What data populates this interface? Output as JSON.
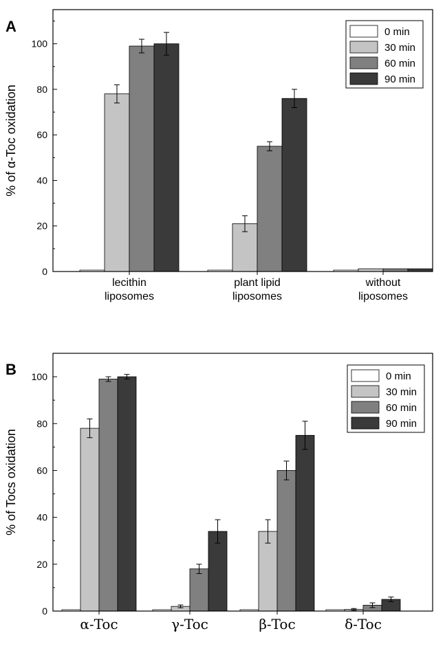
{
  "chart_data": [
    {
      "type": "bar",
      "panel_letter": "A",
      "ylabel": "% of α-Toc oxidation",
      "xlabel": "",
      "ylim": [
        0,
        115
      ],
      "yticks": [
        0,
        20,
        40,
        60,
        80,
        100
      ],
      "categories": [
        [
          "lecithin",
          "liposomes"
        ],
        [
          "plant lipid",
          "liposomes"
        ],
        [
          "without",
          "liposomes"
        ]
      ],
      "series": [
        {
          "name": "0 min",
          "color": "#ffffff",
          "values": [
            0,
            0,
            0
          ],
          "errors": [
            0,
            0,
            0
          ]
        },
        {
          "name": "30 min",
          "color": "#c4c4c4",
          "values": [
            78,
            21,
            1.2
          ],
          "errors": [
            4,
            3.5,
            0
          ]
        },
        {
          "name": "60 min",
          "color": "#808080",
          "values": [
            99,
            55,
            1.2
          ],
          "errors": [
            3,
            2,
            0
          ]
        },
        {
          "name": "90 min",
          "color": "#3a3a3a",
          "values": [
            100,
            76,
            1.2
          ],
          "errors": [
            5,
            4,
            0
          ]
        }
      ],
      "legend": "top-right",
      "grid": false
    },
    {
      "type": "bar",
      "panel_letter": "B",
      "ylabel": "% of Tocs oxidation",
      "xlabel": "",
      "ylim": [
        0,
        110
      ],
      "yticks": [
        0,
        20,
        40,
        60,
        80,
        100
      ],
      "categories": [
        [
          "α-Toc"
        ],
        [
          "γ-Toc"
        ],
        [
          "β-Toc"
        ],
        [
          "δ-Toc"
        ]
      ],
      "series": [
        {
          "name": "0 min",
          "color": "#ffffff",
          "values": [
            0,
            0,
            0,
            0
          ],
          "errors": [
            0,
            0,
            0,
            0
          ]
        },
        {
          "name": "30 min",
          "color": "#c4c4c4",
          "values": [
            78,
            2,
            34,
            0.7
          ],
          "errors": [
            4,
            0.6,
            5,
            0.4
          ]
        },
        {
          "name": "60 min",
          "color": "#808080",
          "values": [
            99,
            18,
            60,
            2.5
          ],
          "errors": [
            1,
            2,
            4,
            1
          ]
        },
        {
          "name": "90 min",
          "color": "#3a3a3a",
          "values": [
            100,
            34,
            75,
            5
          ],
          "errors": [
            1,
            5,
            6,
            1
          ]
        }
      ],
      "legend": "top-right",
      "grid": false
    }
  ]
}
